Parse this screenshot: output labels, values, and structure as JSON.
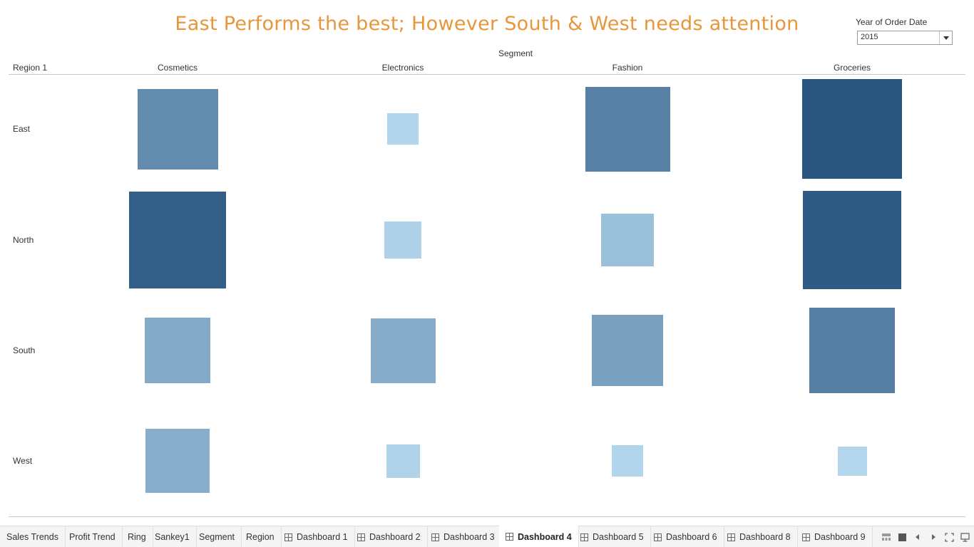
{
  "title": "East Performs the best; However South & West needs attention",
  "filter": {
    "label": "Year of Order Date",
    "value": "2015"
  },
  "chart_data": {
    "type": "heatmap",
    "mark": "square",
    "column_dimension": "Segment",
    "row_dimension": "Region 1",
    "columns": [
      "Cosmetics",
      "Electronics",
      "Fashion",
      "Groceries"
    ],
    "rows": [
      "East",
      "North",
      "South",
      "West"
    ],
    "encoding": "square size and color intensity show relative magnitude (0–1)",
    "color_range": [
      "#b7daf0",
      "#2a5680"
    ],
    "values": [
      [
        0.6,
        0.04,
        0.68,
        1.0
      ],
      [
        0.94,
        0.07,
        0.2,
        0.97
      ],
      [
        0.36,
        0.35,
        0.44,
        0.7
      ],
      [
        0.34,
        0.05,
        0.04,
        0.03
      ]
    ]
  },
  "tabs": [
    {
      "label": "Sales Trends",
      "icon": "",
      "active": false
    },
    {
      "label": "Profit Trend",
      "icon": "",
      "active": false
    },
    {
      "label": "Ring",
      "icon": "",
      "active": false
    },
    {
      "label": "Sankey1",
      "icon": "",
      "active": false
    },
    {
      "label": "Segment",
      "icon": "",
      "active": false
    },
    {
      "label": "Region",
      "icon": "",
      "active": false
    },
    {
      "label": "Dashboard 1",
      "icon": "dashboard-icon",
      "active": false
    },
    {
      "label": "Dashboard 2",
      "icon": "dashboard-icon",
      "active": false
    },
    {
      "label": "Dashboard 3",
      "icon": "dashboard-icon",
      "active": false
    },
    {
      "label": "Dashboard 4",
      "icon": "dashboard-icon",
      "active": true
    },
    {
      "label": "Dashboard 5",
      "icon": "dashboard-icon",
      "active": false
    },
    {
      "label": "Dashboard 6",
      "icon": "dashboard-icon",
      "active": false
    },
    {
      "label": "Dashboard 8",
      "icon": "dashboard-icon",
      "active": false
    },
    {
      "label": "Dashboard 9",
      "icon": "dashboard-icon",
      "active": false
    }
  ],
  "controls": [
    "show-filmstrip-icon",
    "show-tabs-icon",
    "previous-sheet-icon",
    "next-sheet-icon",
    "fit-screen-icon",
    "presentation-mode-icon"
  ]
}
